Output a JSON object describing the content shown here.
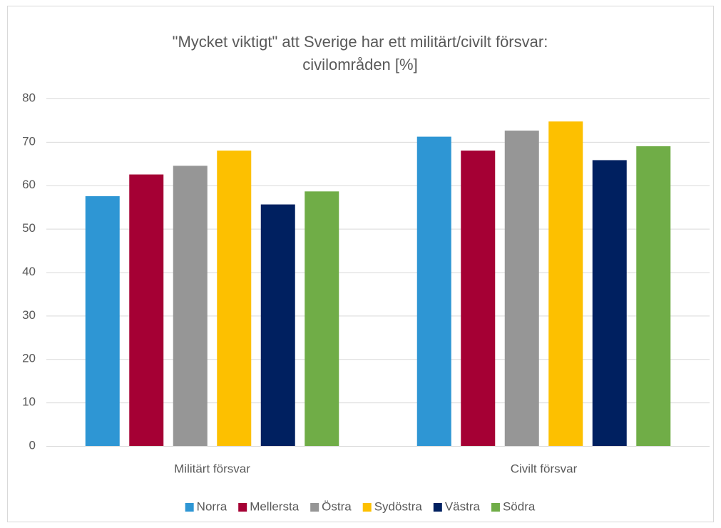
{
  "chart_data": {
    "type": "bar",
    "title": [
      "\"Mycket viktigt\" att Sverige har ett militärt/civilt försvar:",
      "civilområden [%]"
    ],
    "categories": [
      "Militärt försvar",
      "Civilt försvar"
    ],
    "series": [
      {
        "name": "Norra",
        "color": "#2e96d4",
        "values": [
          57.5,
          71.2
        ]
      },
      {
        "name": "Mellersta",
        "color": "#a50034",
        "values": [
          62.5,
          68
        ]
      },
      {
        "name": "Östra",
        "color": "#969696",
        "values": [
          64.5,
          72.6
        ]
      },
      {
        "name": "Sydöstra",
        "color": "#fdc000",
        "values": [
          68,
          74.7
        ]
      },
      {
        "name": "Västra",
        "color": "#002060",
        "values": [
          55.6,
          65.8
        ]
      },
      {
        "name": "Södra",
        "color": "#70ad47",
        "values": [
          58.6,
          69
        ]
      }
    ],
    "ylim": [
      0,
      80
    ],
    "yticks": [
      0,
      10,
      20,
      30,
      40,
      50,
      60,
      70,
      80
    ],
    "grid": true,
    "legend": "bottom"
  }
}
